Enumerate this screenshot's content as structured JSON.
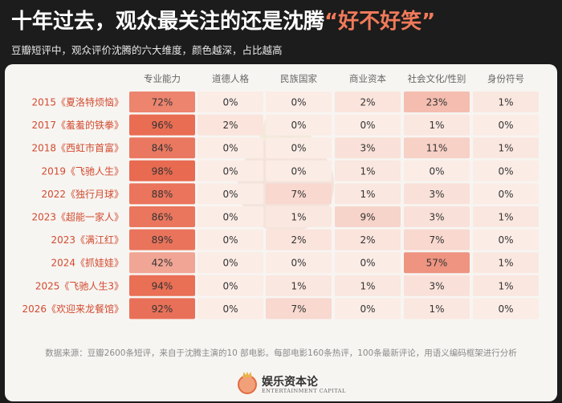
{
  "header": {
    "title_main": "十年过去，观众最关注的还是沈腾",
    "title_highlight": "“好不好笑”",
    "subtitle": "豆瓣短评中，观众评价沈腾的六大维度，颜色越深，占比越高"
  },
  "footnote": "数据来源：豆瓣2600条短评，来自于沈腾主演的10 部电影。每部电影160条热评，100条最新评论，用语义编码框架进行分析",
  "brand": {
    "name": "娱乐资本论",
    "english": "ENTERTAINMENT CAPITAL",
    "watermark_text": "ENTERTAINMENT CAPITAL 娱乐资本论"
  },
  "colors": {
    "background": "#1c1c1c",
    "panel": "#f7f5f2",
    "heat_low": "#fbe9e3",
    "heat_high": "#e8694f",
    "row_label": "#d24a2e"
  },
  "chart_data": {
    "type": "heatmap",
    "columns": [
      "专业能力",
      "道德人格",
      "民族国家",
      "商业资本",
      "社会文化/性别",
      "身份符号"
    ],
    "rows": [
      {
        "label": "2015《夏洛特烦恼》",
        "values": [
          72,
          0,
          0,
          2,
          23,
          1
        ]
      },
      {
        "label": "2017《羞羞的铁拳》",
        "values": [
          96,
          2,
          0,
          0,
          1,
          0
        ]
      },
      {
        "label": "2018《西虹市首富》",
        "values": [
          84,
          0,
          0,
          3,
          11,
          1
        ]
      },
      {
        "label": "2019《飞驰人生》",
        "values": [
          98,
          0,
          0,
          1,
          0,
          0
        ]
      },
      {
        "label": "2022《独行月球》",
        "values": [
          88,
          0,
          7,
          1,
          3,
          0
        ]
      },
      {
        "label": "2023《超能一家人》",
        "values": [
          86,
          0,
          1,
          9,
          3,
          1
        ]
      },
      {
        "label": "2023《满江红》",
        "values": [
          89,
          0,
          2,
          2,
          7,
          0
        ]
      },
      {
        "label": "2024《抓娃娃》",
        "values": [
          42,
          0,
          0,
          0,
          57,
          1
        ]
      },
      {
        "label": "2025《飞驰人生3》",
        "values": [
          94,
          0,
          1,
          1,
          3,
          1
        ]
      },
      {
        "label": "2026《欢迎来龙餐馆》",
        "values": [
          92,
          0,
          7,
          0,
          1,
          0
        ]
      }
    ],
    "unit": "%"
  }
}
